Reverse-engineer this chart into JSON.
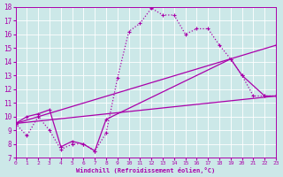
{
  "xlabel": "Windchill (Refroidissement éolien,°C)",
  "xlim": [
    0,
    23
  ],
  "ylim": [
    7,
    18
  ],
  "yticks": [
    7,
    8,
    9,
    10,
    11,
    12,
    13,
    14,
    15,
    16,
    17,
    18
  ],
  "xticks": [
    0,
    1,
    2,
    3,
    4,
    5,
    6,
    7,
    8,
    9,
    10,
    11,
    12,
    13,
    14,
    15,
    16,
    17,
    18,
    19,
    20,
    21,
    22,
    23
  ],
  "bg_color": "#cce8e8",
  "grid_color": "#ffffff",
  "line_color": "#aa00aa",
  "line1_x": [
    0,
    1,
    2,
    3,
    4,
    5,
    6,
    7,
    8,
    9,
    10,
    11,
    12,
    13,
    14,
    15,
    16,
    17,
    18,
    19,
    20,
    21,
    22,
    23
  ],
  "line1_y": [
    9.5,
    8.6,
    10.0,
    9.0,
    7.6,
    8.0,
    8.0,
    7.5,
    8.8,
    12.8,
    16.2,
    16.8,
    17.9,
    17.4,
    17.4,
    16.0,
    16.4,
    16.4,
    15.2,
    14.2,
    13.0,
    11.5,
    11.5,
    11.5
  ],
  "line2_x": [
    0,
    1,
    2,
    3,
    4,
    5,
    6,
    7,
    8,
    19,
    20,
    22,
    23
  ],
  "line2_y": [
    9.5,
    10.0,
    10.2,
    10.5,
    7.8,
    8.2,
    8.0,
    7.5,
    9.8,
    14.2,
    13.0,
    11.5,
    11.5
  ],
  "line3_x": [
    0,
    23
  ],
  "line3_y": [
    9.5,
    15.2
  ],
  "line4_x": [
    0,
    23
  ],
  "line4_y": [
    9.5,
    11.5
  ]
}
